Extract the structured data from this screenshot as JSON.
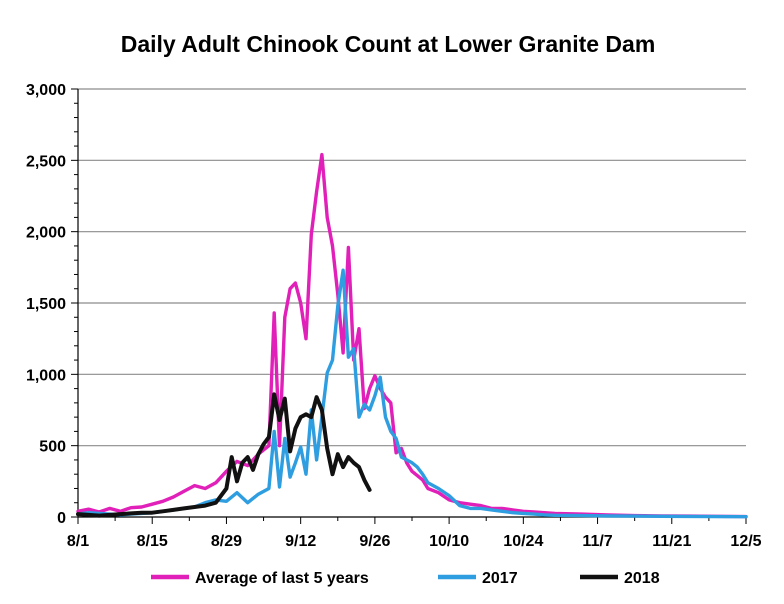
{
  "chart_data": {
    "type": "line",
    "title": "Daily Adult Chinook Count at Lower Granite Dam",
    "xlabel": "",
    "ylabel": "",
    "x_tick_labels": [
      "8/1",
      "8/15",
      "8/29",
      "9/12",
      "9/26",
      "10/10",
      "10/24",
      "11/7",
      "11/21",
      "12/5"
    ],
    "x_tick_days": [
      0,
      14,
      28,
      42,
      56,
      70,
      84,
      98,
      112,
      126
    ],
    "xlim_days": [
      0,
      126
    ],
    "ylim": [
      0,
      3000
    ],
    "y_ticks": [
      0,
      500,
      1000,
      1500,
      2000,
      2500,
      3000
    ],
    "y_tick_labels": [
      "0",
      "500",
      "1,000",
      "1,500",
      "2,000",
      "2,500",
      "3,000"
    ],
    "grid": "horizontal",
    "legend_position": "bottom",
    "x_unit_note": "x values are days after 8/1",
    "series": [
      {
        "name": "Average of last 5 years",
        "color": "#e020b8",
        "x": [
          0,
          2,
          4,
          6,
          8,
          10,
          12,
          14,
          16,
          18,
          20,
          22,
          24,
          26,
          28,
          30,
          32,
          34,
          36,
          37,
          38,
          39,
          40,
          41,
          42,
          43,
          44,
          45,
          46,
          47,
          48,
          49,
          50,
          51,
          52,
          53,
          54,
          55,
          56,
          57,
          58,
          59,
          60,
          61,
          62,
          63,
          64,
          65,
          66,
          68,
          70,
          72,
          74,
          76,
          78,
          80,
          82,
          84,
          86,
          88,
          90,
          95,
          100,
          105,
          110,
          115,
          120,
          126
        ],
        "y": [
          40,
          55,
          35,
          60,
          40,
          65,
          70,
          90,
          110,
          140,
          180,
          220,
          200,
          240,
          320,
          390,
          360,
          440,
          500,
          1430,
          500,
          1400,
          1600,
          1640,
          1500,
          1250,
          1980,
          2280,
          2540,
          2100,
          1900,
          1560,
          1150,
          1890,
          1100,
          1320,
          760,
          900,
          990,
          900,
          840,
          800,
          450,
          480,
          380,
          320,
          290,
          260,
          200,
          170,
          120,
          100,
          90,
          80,
          60,
          60,
          50,
          40,
          35,
          30,
          25,
          20,
          15,
          10,
          8,
          6,
          5,
          3
        ]
      },
      {
        "name": "2017",
        "color": "#2f9ee0",
        "x": [
          0,
          2,
          4,
          6,
          8,
          10,
          12,
          14,
          16,
          18,
          20,
          22,
          24,
          26,
          28,
          30,
          32,
          34,
          36,
          37,
          38,
          39,
          40,
          41,
          42,
          43,
          44,
          45,
          46,
          47,
          48,
          49,
          50,
          51,
          52,
          53,
          54,
          55,
          56,
          57,
          58,
          59,
          60,
          61,
          62,
          63,
          64,
          65,
          66,
          68,
          70,
          72,
          74,
          76,
          78,
          80,
          82,
          84,
          86,
          88,
          90,
          95,
          100,
          105,
          110,
          115,
          120,
          126
        ],
        "y": [
          20,
          30,
          25,
          20,
          15,
          20,
          25,
          30,
          40,
          50,
          60,
          70,
          100,
          120,
          110,
          170,
          100,
          160,
          200,
          600,
          210,
          550,
          280,
          380,
          490,
          300,
          750,
          400,
          700,
          1010,
          1100,
          1480,
          1730,
          1120,
          1180,
          700,
          790,
          750,
          850,
          980,
          700,
          600,
          550,
          420,
          400,
          380,
          350,
          300,
          240,
          200,
          150,
          80,
          60,
          60,
          50,
          40,
          30,
          25,
          20,
          15,
          12,
          10,
          8,
          6,
          5,
          4,
          3,
          2
        ]
      },
      {
        "name": "2018",
        "color": "#111111",
        "x": [
          0,
          2,
          4,
          6,
          8,
          10,
          12,
          14,
          16,
          18,
          20,
          22,
          24,
          26,
          28,
          29,
          30,
          31,
          32,
          33,
          34,
          35,
          36,
          37,
          38,
          39,
          40,
          41,
          42,
          43,
          44,
          45,
          46,
          47,
          48,
          49,
          50,
          51,
          52,
          53,
          54,
          55
        ],
        "y": [
          20,
          15,
          10,
          15,
          20,
          25,
          30,
          30,
          40,
          50,
          60,
          70,
          80,
          100,
          200,
          420,
          250,
          380,
          420,
          330,
          440,
          510,
          560,
          860,
          680,
          830,
          460,
          620,
          700,
          720,
          700,
          840,
          750,
          480,
          300,
          440,
          350,
          420,
          380,
          350,
          260,
          190
        ]
      }
    ]
  }
}
